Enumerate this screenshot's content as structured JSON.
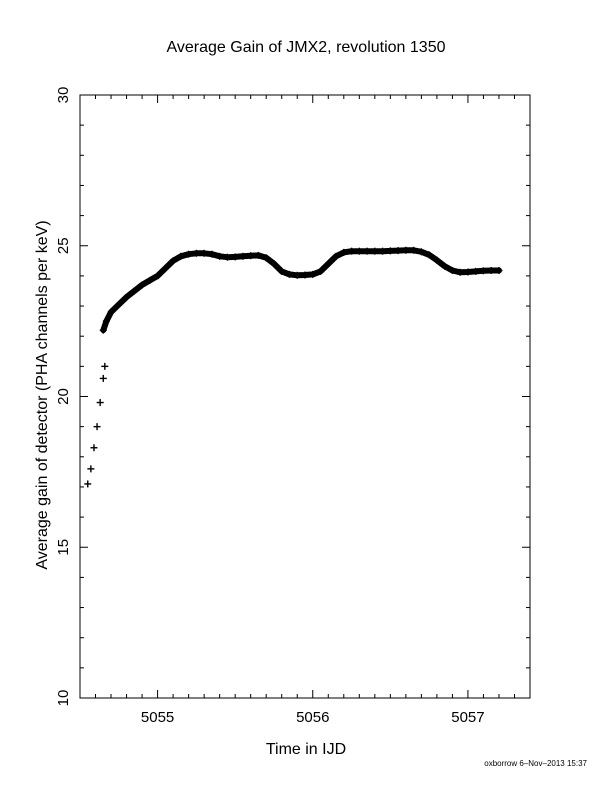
{
  "chart_data": {
    "type": "scatter",
    "title": "Average Gain of JMX2, revolution 1350",
    "xlabel": "Time in IJD",
    "ylabel": "Average gain of detector (PHA channels per keV)",
    "xlim": [
      5054.5,
      5057.4
    ],
    "ylim": [
      10,
      30
    ],
    "xticks": [
      5055,
      5056,
      5057
    ],
    "yticks": [
      10,
      15,
      20,
      25,
      30
    ],
    "grid": false,
    "marker": "plus",
    "series": [
      {
        "points": [
          [
            5054.55,
            17.1
          ],
          [
            5054.57,
            17.6
          ],
          [
            5054.59,
            18.3
          ],
          [
            5054.61,
            19.0
          ],
          [
            5054.63,
            19.8
          ],
          [
            5054.65,
            20.6
          ],
          [
            5054.66,
            21.0
          ],
          [
            5054.65,
            22.2
          ],
          [
            5054.67,
            22.5
          ],
          [
            5054.7,
            22.8
          ],
          [
            5054.75,
            23.05
          ],
          [
            5054.8,
            23.3
          ],
          [
            5054.85,
            23.5
          ],
          [
            5054.9,
            23.7
          ],
          [
            5054.95,
            23.85
          ],
          [
            5055.0,
            24.0
          ],
          [
            5055.05,
            24.25
          ],
          [
            5055.1,
            24.5
          ],
          [
            5055.15,
            24.65
          ],
          [
            5055.2,
            24.72
          ],
          [
            5055.25,
            24.75
          ],
          [
            5055.3,
            24.75
          ],
          [
            5055.35,
            24.72
          ],
          [
            5055.4,
            24.65
          ],
          [
            5055.45,
            24.62
          ],
          [
            5055.5,
            24.63
          ],
          [
            5055.55,
            24.65
          ],
          [
            5055.6,
            24.67
          ],
          [
            5055.65,
            24.68
          ],
          [
            5055.7,
            24.6
          ],
          [
            5055.75,
            24.4
          ],
          [
            5055.8,
            24.15
          ],
          [
            5055.85,
            24.05
          ],
          [
            5055.9,
            24.02
          ],
          [
            5055.95,
            24.03
          ],
          [
            5056.0,
            24.05
          ],
          [
            5056.05,
            24.15
          ],
          [
            5056.1,
            24.4
          ],
          [
            5056.15,
            24.65
          ],
          [
            5056.2,
            24.78
          ],
          [
            5056.25,
            24.82
          ],
          [
            5056.3,
            24.82
          ],
          [
            5056.35,
            24.82
          ],
          [
            5056.4,
            24.82
          ],
          [
            5056.45,
            24.82
          ],
          [
            5056.5,
            24.83
          ],
          [
            5056.55,
            24.84
          ],
          [
            5056.6,
            24.85
          ],
          [
            5056.65,
            24.85
          ],
          [
            5056.7,
            24.8
          ],
          [
            5056.75,
            24.7
          ],
          [
            5056.8,
            24.52
          ],
          [
            5056.85,
            24.32
          ],
          [
            5056.9,
            24.18
          ],
          [
            5056.95,
            24.12
          ],
          [
            5057.0,
            24.13
          ],
          [
            5057.05,
            24.15
          ],
          [
            5057.1,
            24.17
          ],
          [
            5057.15,
            24.18
          ],
          [
            5057.2,
            24.18
          ]
        ]
      }
    ]
  },
  "footer": {
    "credit": "oxborrow  6–Nov–2013 15:37"
  }
}
